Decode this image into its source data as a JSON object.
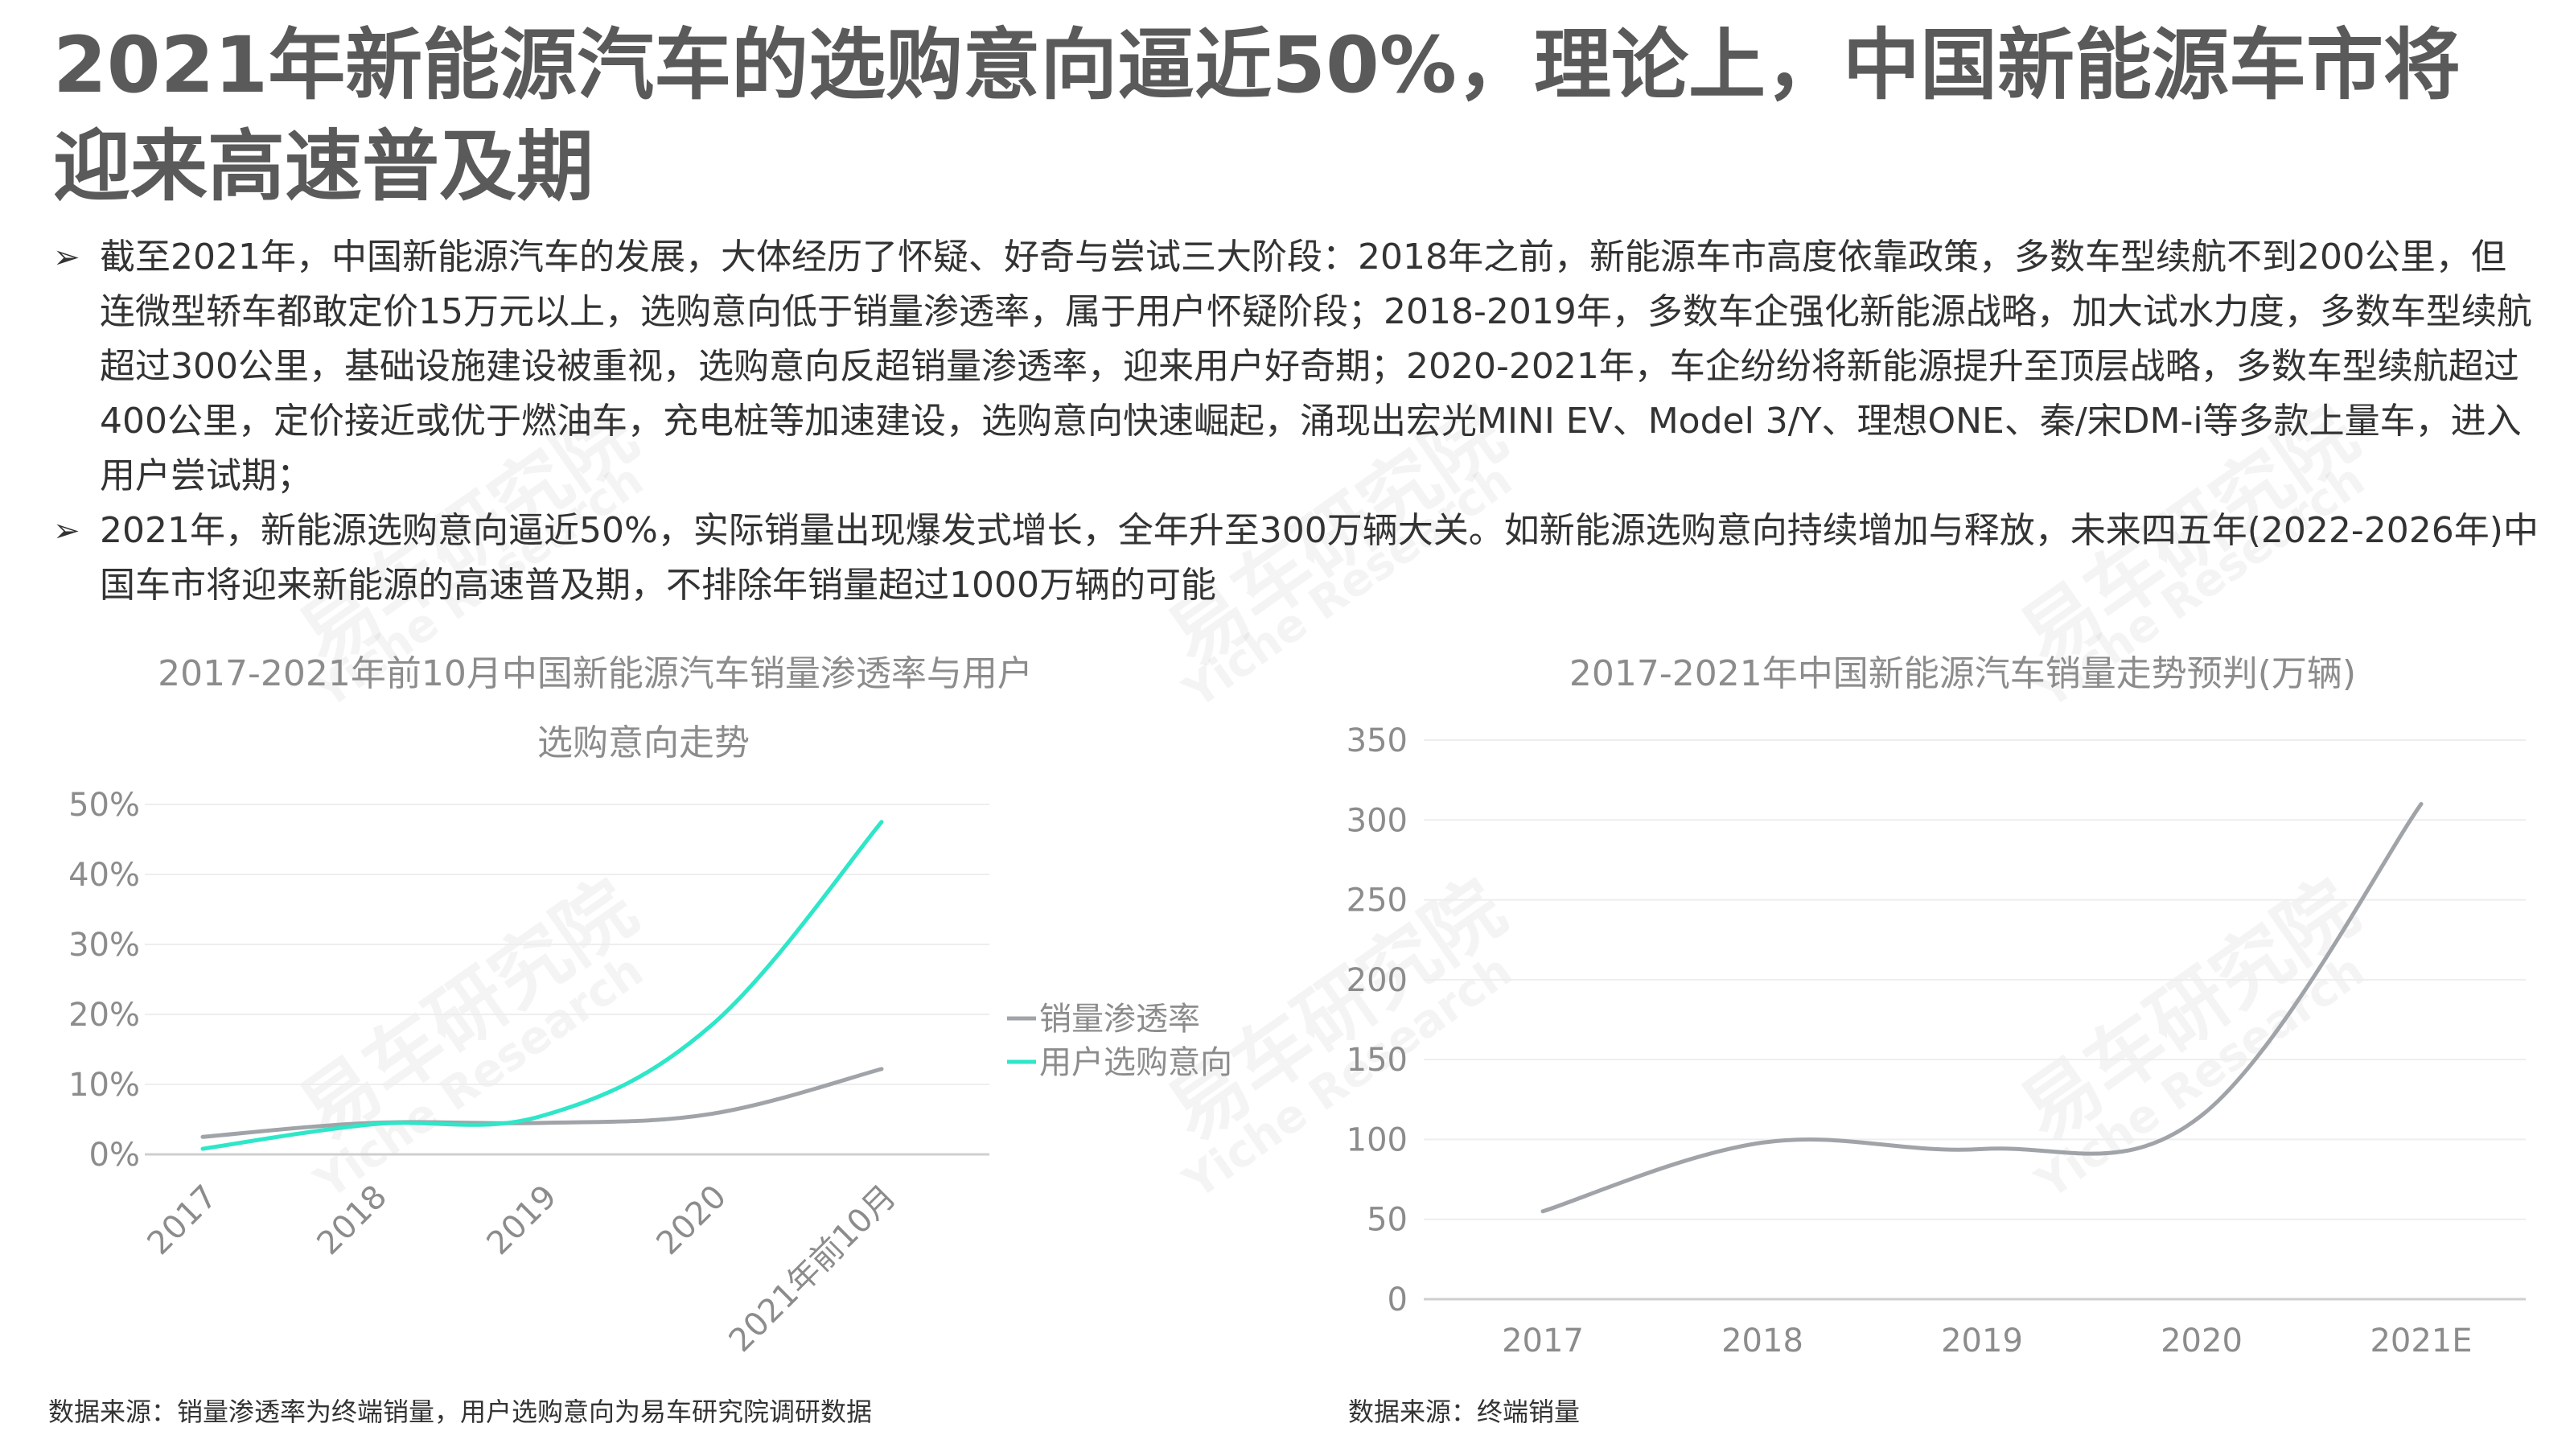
{
  "title": "2021年新能源汽车的选购意向逼近50%，理论上，中国新能源车市将迎来高速普及期",
  "bullets": [
    "截至2021年，中国新能源汽车的发展，大体经历了怀疑、好奇与尝试三大阶段：2018年之前，新能源车市高度依靠政策，多数车型续航不到200公里，但连微型轿车都敢定价15万元以上，选购意向低于销量渗透率，属于用户怀疑阶段；2018-2019年，多数车企强化新能源战略，加大试水力度，多数车型续航超过300公里，基础设施建设被重视，选购意向反超销量渗透率，迎来用户好奇期；2020-2021年，车企纷纷将新能源提升至顶层战略，多数车型续航超过400公里，定价接近或优于燃油车，充电桩等加速建设，选购意向快速崛起，涌现出宏光MINI EV、Model 3/Y、理想ONE、秦/宋DM-i等多款上量车，进入用户尝试期；",
    "2021年，新能源选购意向逼近50%，实际销量出现爆发式增长，全年升至300万辆大关。如新能源选购意向持续增加与释放，未来四五年(2022-2026年)中国车市将迎来新能源的高速普及期，不排除年销量超过1000万辆的可能"
  ],
  "watermark": {
    "cn": "易车研究院",
    "en": "Yiche Research"
  },
  "chart_data": [
    {
      "type": "line",
      "title": "2017-2021年前10月中国新能源汽车销量渗透率与用户选购意向走势",
      "categories": [
        "2017",
        "2018",
        "2019",
        "2020",
        "2021年前10月"
      ],
      "series": [
        {
          "name": "销量渗透率",
          "values": [
            2.5,
            4.5,
            4.5,
            5.8,
            12.2
          ],
          "color": "#a0a4a8"
        },
        {
          "name": "用户选购意向",
          "values": [
            0.8,
            4.3,
            5.5,
            18.5,
            47.5
          ],
          "color": "#2ee6c8"
        }
      ],
      "y_ticks": [
        "0%",
        "10%",
        "20%",
        "30%",
        "40%",
        "50%"
      ],
      "ylim": [
        0,
        50
      ],
      "legend": "right",
      "grid": true
    },
    {
      "type": "line",
      "title": "2017-2021年中国新能源汽车销量走势预判(万辆)",
      "categories": [
        "2017",
        "2018",
        "2019",
        "2020",
        "2021E"
      ],
      "series": [
        {
          "values": [
            55,
            98,
            94,
            115,
            310
          ],
          "color": "#a0a4a8"
        }
      ],
      "y_ticks": [
        "0",
        "50",
        "100",
        "150",
        "200",
        "250",
        "300",
        "350"
      ],
      "ylim": [
        0,
        350
      ],
      "grid": true
    }
  ],
  "sources": [
    "数据来源：销量渗透率为终端销量，用户选购意向为易车研究院调研数据",
    "数据来源：终端销量"
  ]
}
